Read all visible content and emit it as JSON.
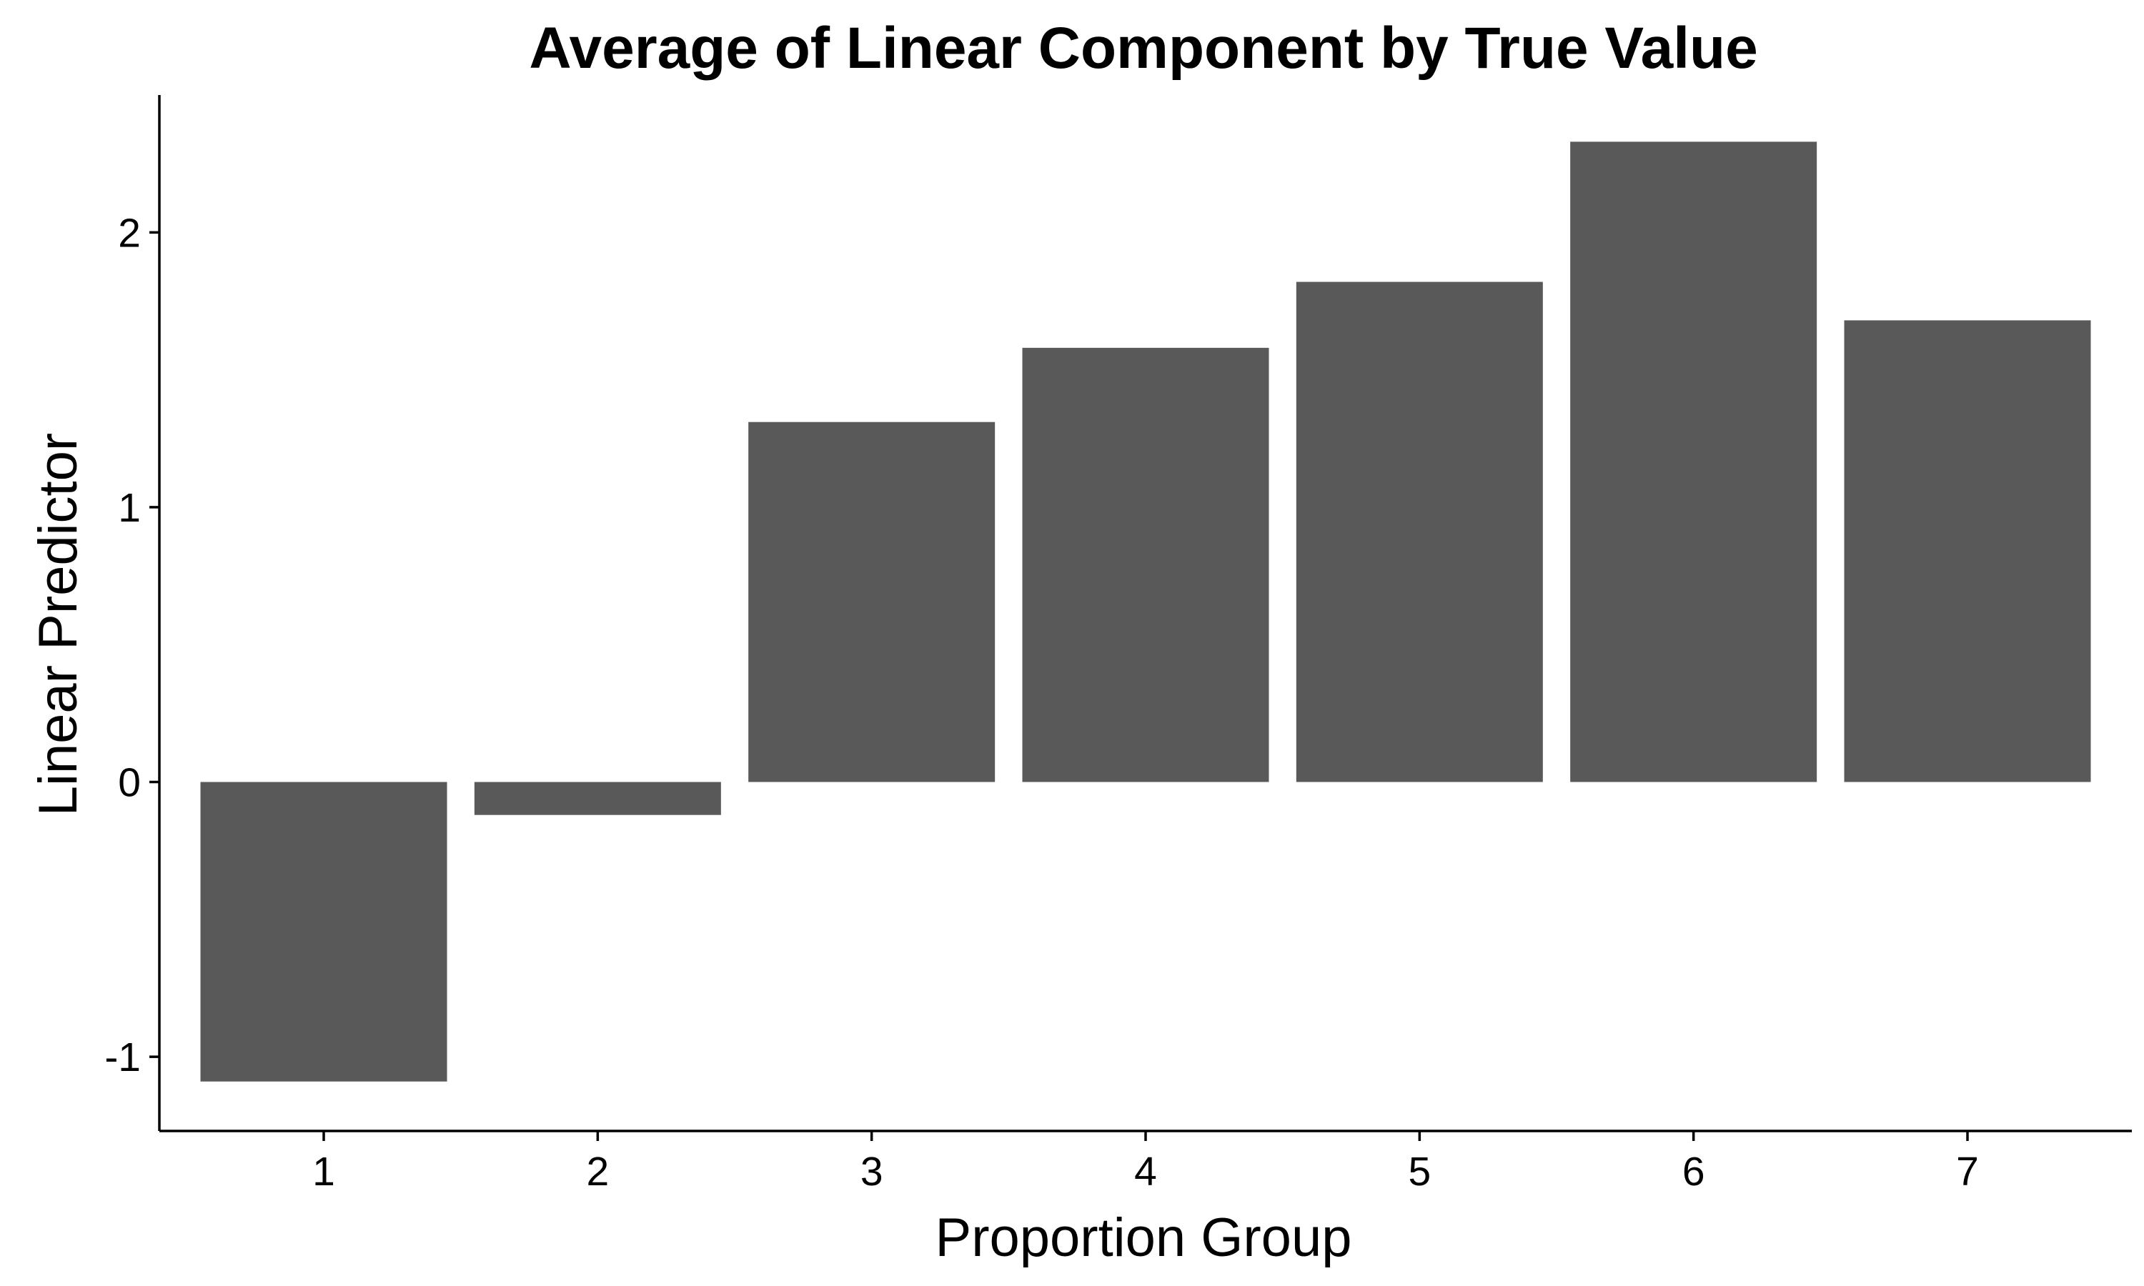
{
  "chart_data": {
    "type": "bar",
    "title": "Average of Linear Component by True Value",
    "xlabel": "Proportion Group",
    "ylabel": "Linear Predictor",
    "categories": [
      "1",
      "2",
      "3",
      "4",
      "5",
      "6",
      "7"
    ],
    "values": [
      -1.09,
      -0.12,
      1.31,
      1.58,
      1.82,
      2.33,
      1.68
    ],
    "yticks": [
      -1,
      0,
      1,
      2
    ],
    "ytick_labels": [
      "-1",
      "0",
      "1",
      "2"
    ],
    "ylim": [
      -1.27,
      2.5
    ],
    "grid": false,
    "legend": "none",
    "bar_color": "#595959"
  }
}
